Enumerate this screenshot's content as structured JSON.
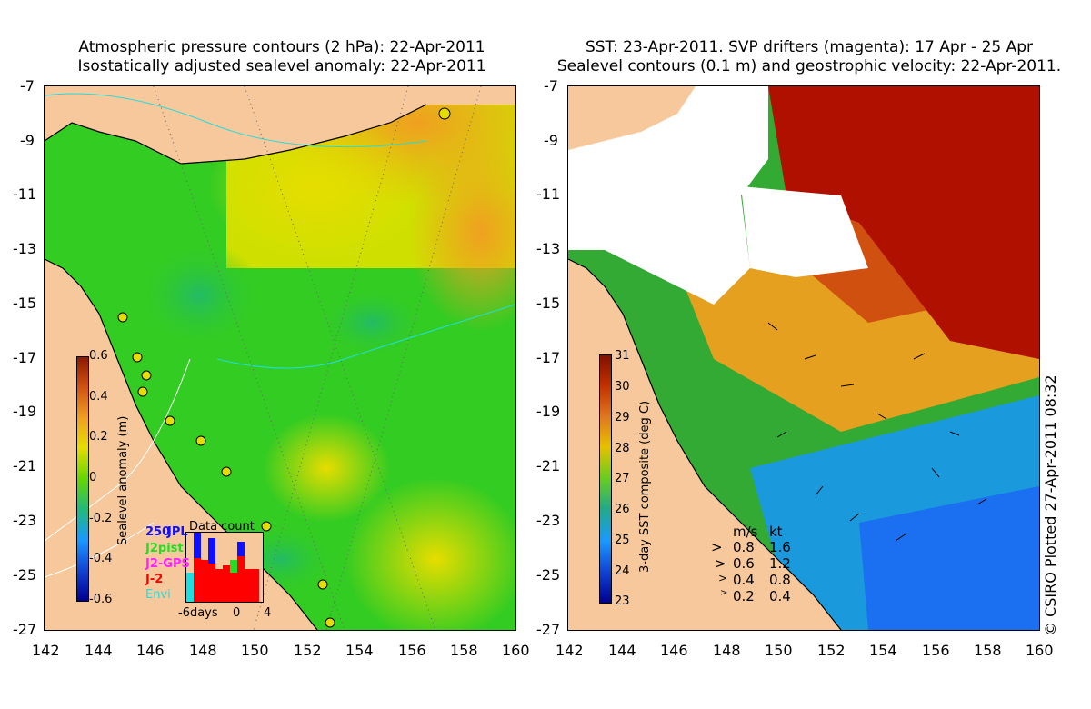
{
  "left_panel": {
    "title_line1": "Atmospheric pressure contours (2 hPa): 22-Apr-2011",
    "title_line2": "Isostatically adjusted sealevel anomaly: 22-Apr-2011",
    "colorbar": {
      "label": "Sealevel anomaly (m)",
      "ticks": [
        "0.6",
        "0.4",
        "0.2",
        "0",
        "-0.2",
        "-0.4",
        "-0.6"
      ]
    },
    "inset": {
      "title": "Data count",
      "satellites": [
        {
          "name": "250",
          "color": "#1010ff"
        },
        {
          "name": "JPL",
          "color": "#1010ff"
        },
        {
          "name": "J2pist",
          "color": "#22dd22"
        },
        {
          "name": "J2-GPS",
          "color": "#ff22ff"
        },
        {
          "name": "J-2",
          "color": "#ff0000"
        },
        {
          "name": "Envi",
          "color": "#22dddd"
        }
      ],
      "x_ticks": [
        "-6days",
        "0",
        "4"
      ]
    }
  },
  "right_panel": {
    "title_line1": "SST: 23-Apr-2011. SVP drifters (magenta): 17 Apr - 25 Apr",
    "title_line2": "Sealevel contours (0.1 m) and geostrophic velocity: 22-Apr-2011.",
    "colorbar": {
      "label": "3-day SST composite (deg C)",
      "ticks": [
        "31",
        "30",
        "29",
        "28",
        "27",
        "26",
        "25",
        "24",
        "23"
      ]
    },
    "speed_legend": {
      "header_ms": "m/s",
      "header_kt": "kt",
      "rows": [
        {
          "ms": "0.8",
          "kt": "1.6"
        },
        {
          "ms": "0.6",
          "kt": "1.2"
        },
        {
          "ms": "0.4",
          "kt": "0.8"
        },
        {
          "ms": "0.2",
          "kt": "0.4"
        }
      ]
    }
  },
  "axes": {
    "y_ticks": [
      "-7",
      "-9",
      "-11",
      "-13",
      "-15",
      "-17",
      "-19",
      "-21",
      "-23",
      "-25",
      "-27"
    ],
    "x_ticks": [
      "142",
      "144",
      "146",
      "148",
      "150",
      "152",
      "154",
      "156",
      "158",
      "160"
    ]
  },
  "credit": "© CSIRO Plotted 27-Apr-2011 08:32",
  "colors": {
    "land": "#f7c89b",
    "sealevel_green": "#33cc22",
    "sealevel_yellow": "#e6dd00",
    "sealevel_orange": "#f0a020",
    "sst_red": "#b01000",
    "sst_orange": "#e07820",
    "sst_green": "#33aa33",
    "sst_blue": "#1a7fff"
  }
}
